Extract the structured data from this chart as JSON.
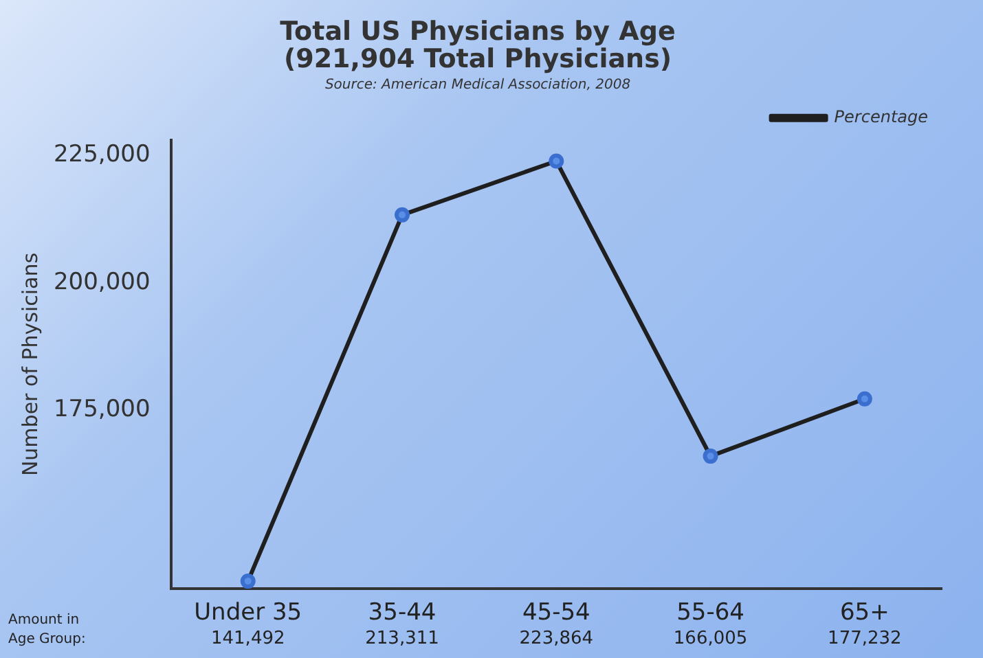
{
  "chart_data": {
    "type": "line",
    "title": [
      "Total US Physicians by Age",
      "(921,904 Total Physicians)"
    ],
    "subtitle": "Source: American Medical Association, 2008",
    "ylabel": "Number of Physicians",
    "categories": [
      "Under 35",
      "35-44",
      "45-54",
      "55-64",
      "65+"
    ],
    "series": [
      {
        "name": "Percentage",
        "color": "#1f1f1f",
        "values": [
          141492,
          213311,
          223864,
          166005,
          177232
        ],
        "value_labels": [
          "141,492",
          "213,311",
          "223,864",
          "166,005",
          "177,232"
        ]
      }
    ],
    "ylim": [
      140000,
      228000
    ],
    "yticks": [
      {
        "value": 175000,
        "label": "175,000"
      },
      {
        "value": 200000,
        "label": "200,000"
      },
      {
        "value": 225000,
        "label": "225,000"
      }
    ],
    "grid": false,
    "legend": "top right",
    "marker": "circle",
    "line_style": "solid",
    "annotations": [
      "Amount in Age Group:"
    ]
  }
}
